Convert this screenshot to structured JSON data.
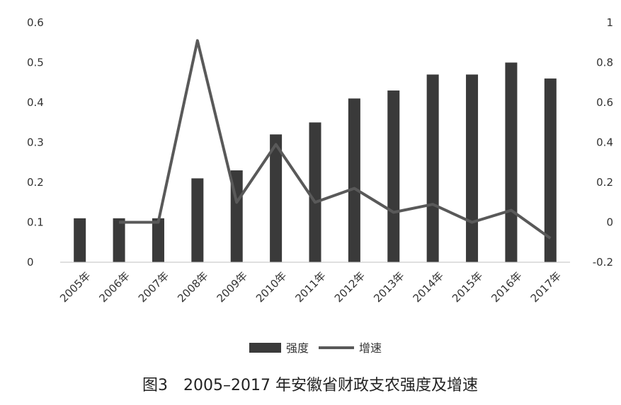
{
  "chart_data": {
    "type": "bar",
    "categories": [
      "2005年",
      "2006年",
      "2007年",
      "2008年",
      "2009年",
      "2010年",
      "2011年",
      "2012年",
      "2013年",
      "2014年",
      "2015年",
      "2016年",
      "2017年"
    ],
    "series": [
      {
        "name": "强度",
        "type": "bar",
        "axis": "left",
        "color": "#3a3a3a",
        "values": [
          0.11,
          0.11,
          0.11,
          0.21,
          0.23,
          0.32,
          0.35,
          0.41,
          0.43,
          0.47,
          0.47,
          0.5,
          0.46
        ]
      },
      {
        "name": "增速",
        "type": "line",
        "axis": "right",
        "color": "#595959",
        "values": [
          null,
          0.0,
          0.0,
          0.91,
          0.1,
          0.39,
          0.1,
          0.17,
          0.05,
          0.09,
          0.0,
          0.06,
          -0.08
        ]
      }
    ],
    "y_left": {
      "min": 0,
      "max": 0.6,
      "ticks": [
        "0",
        "0.1",
        "0.2",
        "0.3",
        "0.4",
        "0.5",
        "0.6"
      ]
    },
    "y_right": {
      "min": -0.2,
      "max": 1,
      "ticks": [
        "-0.2",
        "0",
        "0.2",
        "0.4",
        "0.6",
        "0.8",
        "1"
      ]
    },
    "legend_position": "bottom-center",
    "grid": false,
    "caption": "图3　2005–2017 年安徽省财政支农强度及增速"
  }
}
